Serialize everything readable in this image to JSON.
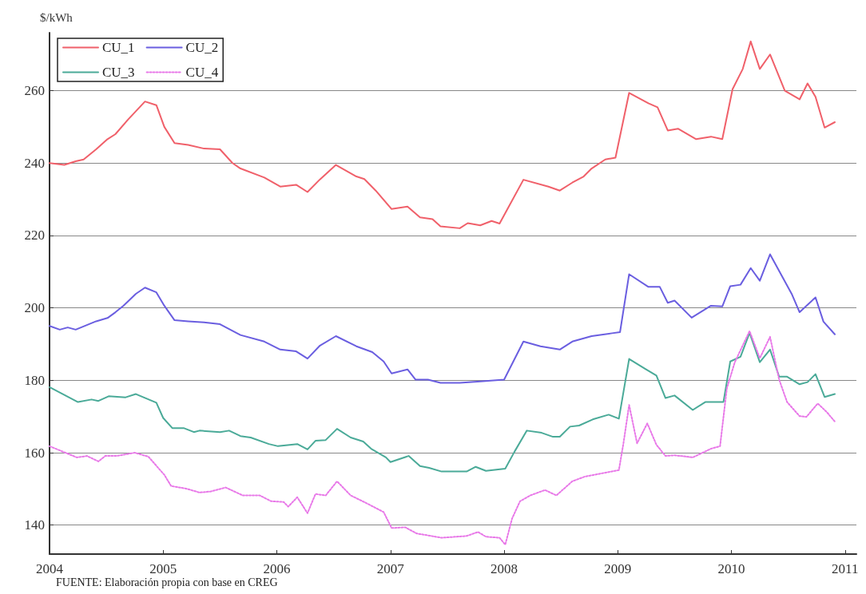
{
  "chart_data": {
    "type": "line",
    "ylabel": "$/kWh",
    "annotations": [
      "FUENTE: Elaboración propia con base en CREG"
    ],
    "xlim": [
      2004,
      2011.1
    ],
    "xticks": [
      2004,
      2005,
      2006,
      2007,
      2008,
      2009,
      2010,
      2011
    ],
    "ylim": [
      132,
      276
    ],
    "yticks": [
      140,
      160,
      180,
      200,
      220,
      240,
      260
    ],
    "grid": "y",
    "legend": "top left",
    "marker": "none",
    "line_style": "solid",
    "series": [
      {
        "name": "CU_1",
        "color": "#f0606a",
        "x": [
          2004.0,
          2004.13,
          2004.23,
          2004.3,
          2004.41,
          2004.51,
          2004.58,
          2004.69,
          2004.84,
          2004.94,
          2005.01,
          2005.1,
          2005.22,
          2005.36,
          2005.5,
          2005.61,
          2005.68,
          2005.89,
          2006.03,
          2006.17,
          2006.27,
          2006.38,
          2006.52,
          2006.7,
          2006.77,
          2006.87,
          2007.01,
          2007.15,
          2007.26,
          2007.37,
          2007.44,
          2007.61,
          2007.68,
          2007.79,
          2007.89,
          2007.96,
          2008.17,
          2008.39,
          2008.49,
          2008.6,
          2008.7,
          2008.77,
          2008.89,
          2008.98,
          2009.1,
          2009.27,
          2009.35,
          2009.44,
          2009.53,
          2009.69,
          2009.82,
          2009.92,
          2010.01,
          2010.1,
          2010.17,
          2010.25,
          2010.34,
          2010.47,
          2010.6,
          2010.67,
          2010.74,
          2010.82,
          2010.91
        ],
        "values": [
          240,
          239.5,
          240.5,
          241,
          243.8,
          246.6,
          248,
          252,
          257,
          256,
          250,
          245.5,
          245,
          244,
          243.8,
          240,
          238.5,
          236,
          233.5,
          234,
          232,
          235.5,
          239.5,
          236.3,
          235.6,
          232.4,
          227.3,
          228,
          225,
          224.5,
          222.5,
          222,
          223.4,
          222.8,
          224,
          223.3,
          235.4,
          233.5,
          232.4,
          234.6,
          236.3,
          238.5,
          241,
          241.5,
          259.4,
          256.5,
          255.4,
          249,
          249.5,
          246.6,
          247.3,
          246.6,
          260.4,
          266,
          273.6,
          266,
          270,
          260,
          257.6,
          262,
          258.3,
          249.8,
          251.3
        ]
      },
      {
        "name": "CU_2",
        "color": "#6a5ee0",
        "x": [
          2004.0,
          2004.09,
          2004.16,
          2004.23,
          2004.41,
          2004.51,
          2004.58,
          2004.65,
          2004.76,
          2004.84,
          2004.94,
          2005.01,
          2005.1,
          2005.22,
          2005.36,
          2005.5,
          2005.68,
          2005.89,
          2006.03,
          2006.17,
          2006.27,
          2006.38,
          2006.52,
          2006.7,
          2006.84,
          2006.94,
          2007.01,
          2007.15,
          2007.22,
          2007.33,
          2007.44,
          2007.61,
          2007.79,
          2008.0,
          2008.17,
          2008.32,
          2008.49,
          2008.6,
          2008.77,
          2008.95,
          2009.02,
          2009.1,
          2009.27,
          2009.37,
          2009.44,
          2009.5,
          2009.65,
          2009.82,
          2009.92,
          2009.99,
          2010.08,
          2010.17,
          2010.25,
          2010.34,
          2010.53,
          2010.6,
          2010.74,
          2010.81,
          2010.91
        ],
        "values": [
          195,
          194,
          194.6,
          194,
          196.3,
          197.2,
          198.8,
          200.6,
          203.9,
          205.6,
          204.3,
          200.6,
          196.6,
          196.3,
          196,
          195.5,
          192.5,
          190.7,
          188.5,
          188,
          186,
          189.6,
          192.2,
          189.4,
          187.8,
          185.2,
          181.9,
          183,
          180.2,
          180.2,
          179.3,
          179.3,
          179.7,
          180.2,
          190.7,
          189.4,
          188.5,
          190.7,
          192.2,
          193,
          193.3,
          209.3,
          205.8,
          205.8,
          201.4,
          202,
          197.3,
          200.6,
          200.4,
          206,
          206.4,
          211,
          207.5,
          214.8,
          203.9,
          198.8,
          202.9,
          196.2,
          192.7
        ]
      },
      {
        "name": "CU_3",
        "color": "#4aaa98",
        "x": [
          2004.0,
          2004.25,
          2004.37,
          2004.43,
          2004.52,
          2004.67,
          2004.76,
          2004.94,
          2005.0,
          2005.08,
          2005.18,
          2005.27,
          2005.32,
          2005.5,
          2005.58,
          2005.68,
          2005.77,
          2005.93,
          2006.01,
          2006.18,
          2006.27,
          2006.34,
          2006.43,
          2006.53,
          2006.65,
          2006.76,
          2006.83,
          2006.96,
          2007.0,
          2007.16,
          2007.26,
          2007.34,
          2007.45,
          2007.67,
          2007.75,
          2007.84,
          2008.01,
          2008.09,
          2008.2,
          2008.33,
          2008.43,
          2008.49,
          2008.58,
          2008.66,
          2008.78,
          2008.92,
          2009.01,
          2009.1,
          2009.24,
          2009.34,
          2009.42,
          2009.5,
          2009.66,
          2009.77,
          2009.93,
          2009.99,
          2010.08,
          2010.16,
          2010.25,
          2010.34,
          2010.42,
          2010.49,
          2010.6,
          2010.67,
          2010.74,
          2010.82,
          2010.91
        ],
        "values": [
          178.1,
          174,
          174.7,
          174.3,
          175.6,
          175.3,
          176.2,
          173.8,
          169.6,
          166.8,
          166.8,
          165.7,
          166.1,
          165.7,
          166.1,
          164.6,
          164.2,
          162.4,
          161.8,
          162.4,
          160.9,
          163.3,
          163.5,
          166.6,
          164.2,
          163.1,
          161.1,
          158.7,
          157.4,
          159.1,
          156.3,
          155.8,
          154.8,
          154.8,
          156.1,
          155,
          155.6,
          160.2,
          166.1,
          165.5,
          164.4,
          164.4,
          167.2,
          167.5,
          169.2,
          170.5,
          169.4,
          185.9,
          183.2,
          181.3,
          175.1,
          175.8,
          171.8,
          174,
          174,
          185.2,
          186.5,
          193.1,
          185,
          188.5,
          181,
          181,
          178.9,
          179.5,
          181.7,
          175.4,
          176.2
        ]
      },
      {
        "name": "CU_4",
        "color": "#e878e8",
        "line_style": "dotted",
        "x": [
          2004.0,
          2004.24,
          2004.33,
          2004.43,
          2004.49,
          2004.59,
          2004.75,
          2004.87,
          2005.01,
          2005.07,
          2005.2,
          2005.32,
          2005.42,
          2005.55,
          2005.7,
          2005.85,
          2005.95,
          2006.06,
          2006.1,
          2006.18,
          2006.27,
          2006.34,
          2006.43,
          2006.53,
          2006.65,
          2006.78,
          2006.94,
          2007.01,
          2007.13,
          2007.23,
          2007.45,
          2007.67,
          2007.77,
          2007.84,
          2007.96,
          2008.01,
          2008.07,
          2008.14,
          2008.23,
          2008.36,
          2008.46,
          2008.6,
          2008.71,
          2008.86,
          2009.01,
          2009.05,
          2009.1,
          2009.17,
          2009.26,
          2009.34,
          2009.42,
          2009.5,
          2009.66,
          2009.82,
          2009.9,
          2009.96,
          2010.03,
          2010.16,
          2010.25,
          2010.34,
          2010.42,
          2010.49,
          2010.6,
          2010.66,
          2010.76,
          2010.84,
          2010.91
        ],
        "values": [
          161.8,
          158.7,
          159.1,
          157.6,
          159.1,
          159.1,
          160,
          158.9,
          153.9,
          150.8,
          150.1,
          149,
          149.3,
          150.4,
          148.2,
          148.2,
          146.6,
          146.4,
          145.1,
          147.7,
          143.3,
          148.6,
          148.2,
          152.1,
          148.2,
          146.2,
          143.6,
          139.2,
          139.4,
          137.7,
          136.5,
          137,
          138.1,
          136.8,
          136.5,
          134.6,
          141.8,
          146.6,
          148.2,
          149.7,
          148.2,
          152.1,
          153.4,
          154.3,
          155.2,
          162.6,
          173.2,
          162.6,
          168.1,
          162.2,
          159.1,
          159.3,
          158.7,
          161.1,
          161.8,
          177.8,
          185,
          193.6,
          186.1,
          192,
          180.2,
          174,
          170.1,
          169.9,
          173.6,
          171.2,
          168.6
        ]
      }
    ]
  }
}
